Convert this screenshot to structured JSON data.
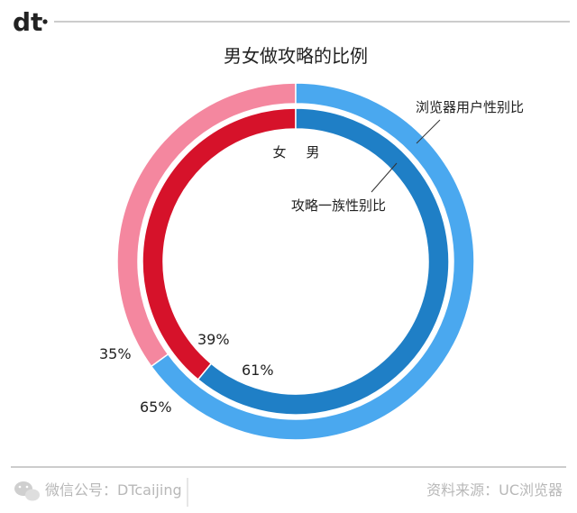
{
  "brand": {
    "logo_text": "dt"
  },
  "footer": {
    "left_text": "微信公号：DTcaijing",
    "right_text": "资料来源：UC浏览器",
    "wechat_icon": "wechat-icon"
  },
  "colors": {
    "background": "#ffffff",
    "male_outer": "#4aa8ef",
    "female_outer": "#f4879f",
    "male_inner": "#1f7fc6",
    "female_inner": "#d6122a",
    "text": "#222222",
    "footer_text": "#b8b8b8",
    "rule": "#999999"
  },
  "chart_data": {
    "type": "pie",
    "variant": "nested-donut",
    "title": "男女做攻略的比例",
    "categories": [
      "女",
      "男"
    ],
    "series": [
      {
        "name": "浏览器用户性别比",
        "ring": "outer",
        "values": [
          35,
          65
        ],
        "labels": [
          "35%",
          "65%"
        ]
      },
      {
        "name": "攻略一族性别比",
        "ring": "inner",
        "values": [
          39,
          61
        ],
        "labels": [
          "39%",
          "61%"
        ]
      }
    ],
    "unit": "%"
  }
}
